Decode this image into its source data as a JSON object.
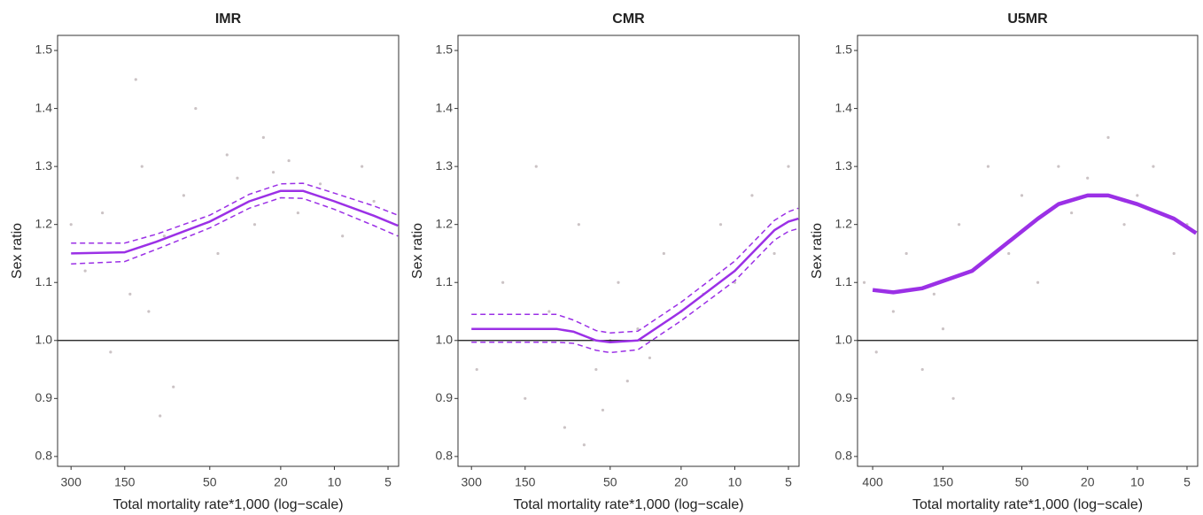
{
  "chart_data": [
    {
      "type": "line",
      "title": "IMR",
      "xlabel": "Total mortality rate*1,000 (log−scale)",
      "ylabel": "Sex ratio",
      "xscale": "log",
      "xlim": [
        357,
        4.36
      ],
      "xticks": [
        300,
        150,
        50,
        20,
        10,
        5
      ],
      "ylim": [
        0.783,
        1.526
      ],
      "yticks": [
        0.8,
        0.9,
        {
          "value": 1,
          "label": "1.0"
        },
        1.1,
        1.2,
        1.3,
        1.4,
        1.5
      ],
      "reference_line": 1,
      "series": [
        {
          "kind": "scatter",
          "color": "#cbc3c5",
          "x": [
            250,
            200,
            180,
            140,
            120,
            110,
            90,
            80,
            70,
            60,
            45,
            40,
            35,
            28,
            25,
            22,
            18,
            16,
            12,
            9,
            7,
            6,
            300,
            130,
            95
          ],
          "values": [
            1.12,
            1.22,
            0.98,
            1.08,
            1.3,
            1.05,
            1.18,
            0.92,
            1.25,
            1.4,
            1.15,
            1.32,
            1.28,
            1.2,
            1.35,
            1.29,
            1.31,
            1.22,
            1.27,
            1.18,
            1.3,
            1.24,
            1.2,
            1.45,
            0.87
          ]
        },
        {
          "kind": "line",
          "color": "#9b30e6",
          "width": 2.5,
          "x": [
            300,
            150,
            100,
            50,
            30,
            20,
            15,
            10,
            6,
            4.4
          ],
          "values": [
            1.15,
            1.152,
            1.17,
            1.205,
            1.24,
            1.258,
            1.258,
            1.24,
            1.215,
            1.198
          ]
        },
        {
          "kind": "line",
          "color": "#9b30e6",
          "width": 1.5,
          "dash": true,
          "x": [
            300,
            150,
            100,
            50,
            30,
            20,
            15,
            10,
            6,
            4.4
          ],
          "values": [
            1.168,
            1.168,
            1.183,
            1.216,
            1.252,
            1.27,
            1.271,
            1.254,
            1.232,
            1.216
          ]
        },
        {
          "kind": "line",
          "color": "#9b30e6",
          "width": 1.5,
          "dash": true,
          "x": [
            300,
            150,
            100,
            50,
            30,
            20,
            15,
            10,
            6,
            4.4
          ],
          "values": [
            1.132,
            1.136,
            1.157,
            1.194,
            1.228,
            1.246,
            1.245,
            1.226,
            1.198,
            1.18
          ]
        }
      ]
    },
    {
      "type": "line",
      "title": "CMR",
      "xlabel": "Total mortality rate*1,000 (log−scale)",
      "ylabel": "Sex ratio",
      "xscale": "log",
      "xlim": [
        357,
        4.36
      ],
      "xticks": [
        300,
        150,
        50,
        20,
        10,
        5
      ],
      "ylim": [
        0.783,
        1.526
      ],
      "yticks": [
        0.8,
        0.9,
        {
          "value": 1,
          "label": "1.0"
        },
        1.1,
        1.2,
        1.3,
        1.4,
        1.5
      ],
      "reference_line": 1,
      "series": [
        {
          "kind": "scatter",
          "color": "#cbc3c5",
          "x": [
            280,
            200,
            150,
            110,
            90,
            75,
            60,
            55,
            50,
            45,
            40,
            35,
            30,
            25,
            20,
            15,
            12,
            10,
            8,
            6,
            5,
            130,
            70
          ],
          "values": [
            0.95,
            1.1,
            0.9,
            1.05,
            0.85,
            1.2,
            0.95,
            0.88,
            1.0,
            1.1,
            0.93,
            1.02,
            0.97,
            1.15,
            1.05,
            1.08,
            1.2,
            1.1,
            1.25,
            1.15,
            1.3,
            1.3,
            0.82
          ]
        },
        {
          "kind": "line",
          "color": "#9b30e6",
          "width": 2.5,
          "x": [
            300,
            100,
            80,
            60,
            50,
            35,
            20,
            10,
            6,
            5,
            4.4
          ],
          "values": [
            1.02,
            1.02,
            1.015,
            1.0,
            0.997,
            1.0,
            1.05,
            1.12,
            1.19,
            1.205,
            1.21
          ]
        },
        {
          "kind": "line",
          "color": "#9b30e6",
          "width": 1.5,
          "dash": true,
          "x": [
            300,
            100,
            80,
            60,
            50,
            35,
            20,
            10,
            6,
            5,
            4.4
          ],
          "values": [
            1.045,
            1.045,
            1.035,
            1.017,
            1.013,
            1.016,
            1.066,
            1.137,
            1.207,
            1.222,
            1.228
          ]
        },
        {
          "kind": "line",
          "color": "#9b30e6",
          "width": 1.5,
          "dash": true,
          "x": [
            300,
            100,
            80,
            60,
            50,
            35,
            20,
            10,
            6,
            5,
            4.4
          ],
          "values": [
            0.997,
            0.997,
            0.995,
            0.983,
            0.979,
            0.984,
            1.034,
            1.103,
            1.173,
            1.188,
            1.193
          ]
        }
      ]
    },
    {
      "type": "line",
      "title": "U5MR",
      "xlabel": "Total mortality rate*1,000 (log−scale)",
      "ylabel": "Sex ratio",
      "xscale": "log",
      "xlim": [
        494,
        4.31
      ],
      "xticks": [
        400,
        150,
        50,
        20,
        10,
        5
      ],
      "ylim": [
        0.783,
        1.526
      ],
      "yticks": [
        0.8,
        0.9,
        {
          "value": 1,
          "label": "1.0"
        },
        1.1,
        1.2,
        1.3,
        1.4,
        1.5
      ],
      "reference_line": 1,
      "series": [
        {
          "kind": "scatter",
          "color": "#cbc3c5",
          "x": [
            450,
            380,
            300,
            250,
            200,
            170,
            150,
            120,
            100,
            80,
            60,
            50,
            40,
            30,
            25,
            20,
            15,
            12,
            10,
            8,
            6,
            5,
            130
          ],
          "values": [
            1.1,
            0.98,
            1.05,
            1.15,
            0.95,
            1.08,
            1.02,
            1.2,
            1.12,
            1.3,
            1.15,
            1.25,
            1.1,
            1.3,
            1.22,
            1.28,
            1.35,
            1.2,
            1.25,
            1.3,
            1.15,
            1.2,
            0.9
          ]
        },
        {
          "kind": "line",
          "color": "#9b30e6",
          "width": 4.5,
          "x": [
            400,
            300,
            200,
            100,
            60,
            40,
            30,
            20,
            15,
            10,
            6,
            4.4
          ],
          "values": [
            1.087,
            1.083,
            1.09,
            1.12,
            1.17,
            1.21,
            1.235,
            1.25,
            1.25,
            1.235,
            1.21,
            1.185
          ]
        }
      ]
    }
  ]
}
